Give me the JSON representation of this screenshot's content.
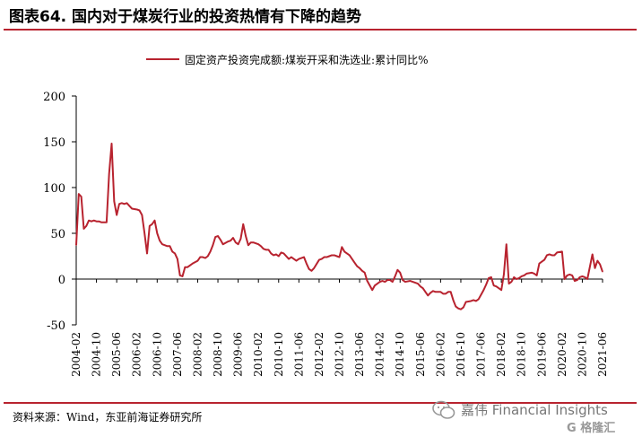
{
  "header": {
    "title": "图表64. 国内对于煤炭行业的投资热情有下降的趋势"
  },
  "footer": {
    "source": "资料来源：Wind，东亚前海证券研究所",
    "watermark_text": "嘉伟 Financial Insights",
    "watermark_logo": "G 格隆汇"
  },
  "colors": {
    "series": "#b8232f",
    "rule": "#b8232f",
    "axis": "#000000"
  },
  "chart_data": {
    "type": "line",
    "legend_position": "top-right",
    "grid": false,
    "ylim": [
      -50,
      200
    ],
    "yticks": [
      "200",
      "150",
      "100",
      "50",
      "0",
      "-50"
    ],
    "xlim": [
      "2004-02",
      "2021-06"
    ],
    "xticks": [
      "2004-02",
      "2004-10",
      "2005-06",
      "2006-02",
      "2006-10",
      "2007-06",
      "2008-02",
      "2008-10",
      "2009-06",
      "2010-02",
      "2010-10",
      "2011-06",
      "2012-02",
      "2012-10",
      "2013-06",
      "2014-02",
      "2014-10",
      "2015-06",
      "2016-02",
      "2016-10",
      "2017-06",
      "2018-02",
      "2018-10",
      "2019-06",
      "2020-02",
      "2020-10",
      "2021-06"
    ],
    "series": [
      {
        "name": "固定资产投资完成额:煤炭开采和洗选业:累计同比%",
        "points": [
          [
            "2004-02",
            37
          ],
          [
            "2004-03",
            93
          ],
          [
            "2004-04",
            90
          ],
          [
            "2004-05",
            55
          ],
          [
            "2004-06",
            58
          ],
          [
            "2004-07",
            64
          ],
          [
            "2004-08",
            63
          ],
          [
            "2004-09",
            64
          ],
          [
            "2004-10",
            63
          ],
          [
            "2004-11",
            63
          ],
          [
            "2004-12",
            62
          ],
          [
            "2005-02",
            62
          ],
          [
            "2005-03",
            115
          ],
          [
            "2005-04",
            148
          ],
          [
            "2005-05",
            85
          ],
          [
            "2005-06",
            70
          ],
          [
            "2005-07",
            82
          ],
          [
            "2005-08",
            83
          ],
          [
            "2005-09",
            82
          ],
          [
            "2005-10",
            83
          ],
          [
            "2005-11",
            80
          ],
          [
            "2005-12",
            77
          ],
          [
            "2006-02",
            76
          ],
          [
            "2006-03",
            75
          ],
          [
            "2006-04",
            70
          ],
          [
            "2006-05",
            50
          ],
          [
            "2006-06",
            28
          ],
          [
            "2006-07",
            58
          ],
          [
            "2006-08",
            60
          ],
          [
            "2006-09",
            64
          ],
          [
            "2006-10",
            50
          ],
          [
            "2006-11",
            42
          ],
          [
            "2006-12",
            38
          ],
          [
            "2007-02",
            36
          ],
          [
            "2007-03",
            36
          ],
          [
            "2007-04",
            30
          ],
          [
            "2007-05",
            28
          ],
          [
            "2007-06",
            22
          ],
          [
            "2007-07",
            4
          ],
          [
            "2007-08",
            3
          ],
          [
            "2007-09",
            13
          ],
          [
            "2007-10",
            13
          ],
          [
            "2007-11",
            15
          ],
          [
            "2007-12",
            17
          ],
          [
            "2008-02",
            20
          ],
          [
            "2008-03",
            24
          ],
          [
            "2008-04",
            24
          ],
          [
            "2008-05",
            23
          ],
          [
            "2008-06",
            25
          ],
          [
            "2008-07",
            30
          ],
          [
            "2008-08",
            37
          ],
          [
            "2008-09",
            46
          ],
          [
            "2008-10",
            47
          ],
          [
            "2008-11",
            43
          ],
          [
            "2008-12",
            38
          ],
          [
            "2009-02",
            41
          ],
          [
            "2009-03",
            42
          ],
          [
            "2009-04",
            45
          ],
          [
            "2009-05",
            40
          ],
          [
            "2009-06",
            38
          ],
          [
            "2009-07",
            44
          ],
          [
            "2009-08",
            60
          ],
          [
            "2009-09",
            47
          ],
          [
            "2009-10",
            37
          ],
          [
            "2009-11",
            40
          ],
          [
            "2009-12",
            40
          ],
          [
            "2010-02",
            38
          ],
          [
            "2010-03",
            36
          ],
          [
            "2010-04",
            33
          ],
          [
            "2010-05",
            32
          ],
          [
            "2010-06",
            32
          ],
          [
            "2010-07",
            28
          ],
          [
            "2010-08",
            26
          ],
          [
            "2010-09",
            27
          ],
          [
            "2010-10",
            25
          ],
          [
            "2010-11",
            29
          ],
          [
            "2010-12",
            28
          ],
          [
            "2011-02",
            22
          ],
          [
            "2011-03",
            24
          ],
          [
            "2011-04",
            22
          ],
          [
            "2011-05",
            20
          ],
          [
            "2011-06",
            22
          ],
          [
            "2011-07",
            23
          ],
          [
            "2011-08",
            24
          ],
          [
            "2011-09",
            17
          ],
          [
            "2011-10",
            11
          ],
          [
            "2011-11",
            9
          ],
          [
            "2011-12",
            12
          ],
          [
            "2012-02",
            21
          ],
          [
            "2012-03",
            22
          ],
          [
            "2012-04",
            24
          ],
          [
            "2012-05",
            24
          ],
          [
            "2012-06",
            25
          ],
          [
            "2012-07",
            26
          ],
          [
            "2012-08",
            26
          ],
          [
            "2012-09",
            25
          ],
          [
            "2012-10",
            24
          ],
          [
            "2012-11",
            35
          ],
          [
            "2012-12",
            30
          ],
          [
            "2013-02",
            26
          ],
          [
            "2013-03",
            22
          ],
          [
            "2013-04",
            18
          ],
          [
            "2013-05",
            14
          ],
          [
            "2013-06",
            12
          ],
          [
            "2013-07",
            9
          ],
          [
            "2013-08",
            7
          ],
          [
            "2013-09",
            -2
          ],
          [
            "2013-10",
            -7
          ],
          [
            "2013-11",
            -12
          ],
          [
            "2013-12",
            -7
          ],
          [
            "2014-02",
            -3
          ],
          [
            "2014-03",
            -2
          ],
          [
            "2014-04",
            -3
          ],
          [
            "2014-05",
            -1
          ],
          [
            "2014-06",
            -1
          ],
          [
            "2014-07",
            -3
          ],
          [
            "2014-08",
            3
          ],
          [
            "2014-09",
            10
          ],
          [
            "2014-10",
            7
          ],
          [
            "2014-11",
            -1
          ],
          [
            "2014-12",
            -3
          ],
          [
            "2015-02",
            -2
          ],
          [
            "2015-03",
            -3
          ],
          [
            "2015-04",
            -4
          ],
          [
            "2015-05",
            -5
          ],
          [
            "2015-06",
            -8
          ],
          [
            "2015-07",
            -10
          ],
          [
            "2015-08",
            -14
          ],
          [
            "2015-09",
            -18
          ],
          [
            "2015-10",
            -15
          ],
          [
            "2015-11",
            -13
          ],
          [
            "2015-12",
            -14
          ],
          [
            "2016-02",
            -14
          ],
          [
            "2016-03",
            -16
          ],
          [
            "2016-04",
            -16
          ],
          [
            "2016-05",
            -14
          ],
          [
            "2016-06",
            -14
          ],
          [
            "2016-07",
            -23
          ],
          [
            "2016-08",
            -30
          ],
          [
            "2016-09",
            -32
          ],
          [
            "2016-10",
            -33
          ],
          [
            "2016-11",
            -31
          ],
          [
            "2016-12",
            -25
          ],
          [
            "2017-02",
            -24
          ],
          [
            "2017-03",
            -23
          ],
          [
            "2017-04",
            -24
          ],
          [
            "2017-05",
            -22
          ],
          [
            "2017-06",
            -17
          ],
          [
            "2017-07",
            -12
          ],
          [
            "2017-08",
            -6
          ],
          [
            "2017-09",
            1
          ],
          [
            "2017-10",
            2
          ],
          [
            "2017-11",
            -7
          ],
          [
            "2017-12",
            -8
          ],
          [
            "2018-02",
            -12
          ],
          [
            "2018-03",
            5
          ],
          [
            "2018-04",
            38
          ],
          [
            "2018-05",
            -5
          ],
          [
            "2018-06",
            -3
          ],
          [
            "2018-07",
            2
          ],
          [
            "2018-08",
            0
          ],
          [
            "2018-09",
            1
          ],
          [
            "2018-10",
            3
          ],
          [
            "2018-11",
            4
          ],
          [
            "2018-12",
            6
          ],
          [
            "2019-02",
            7
          ],
          [
            "2019-03",
            6
          ],
          [
            "2019-04",
            4
          ],
          [
            "2019-05",
            17
          ],
          [
            "2019-06",
            19
          ],
          [
            "2019-07",
            21
          ],
          [
            "2019-08",
            26
          ],
          [
            "2019-09",
            27
          ],
          [
            "2019-10",
            26
          ],
          [
            "2019-11",
            26
          ],
          [
            "2019-12",
            29
          ],
          [
            "2020-02",
            30
          ],
          [
            "2020-03",
            0
          ],
          [
            "2020-04",
            4
          ],
          [
            "2020-05",
            5
          ],
          [
            "2020-06",
            4
          ],
          [
            "2020-07",
            -2
          ],
          [
            "2020-08",
            -1
          ],
          [
            "2020-09",
            2
          ],
          [
            "2020-10",
            3
          ],
          [
            "2020-11",
            2
          ],
          [
            "2020-12",
            0
          ],
          [
            "2021-02",
            27
          ],
          [
            "2021-03",
            12
          ],
          [
            "2021-04",
            20
          ],
          [
            "2021-05",
            16
          ],
          [
            "2021-06",
            8
          ]
        ]
      }
    ]
  }
}
